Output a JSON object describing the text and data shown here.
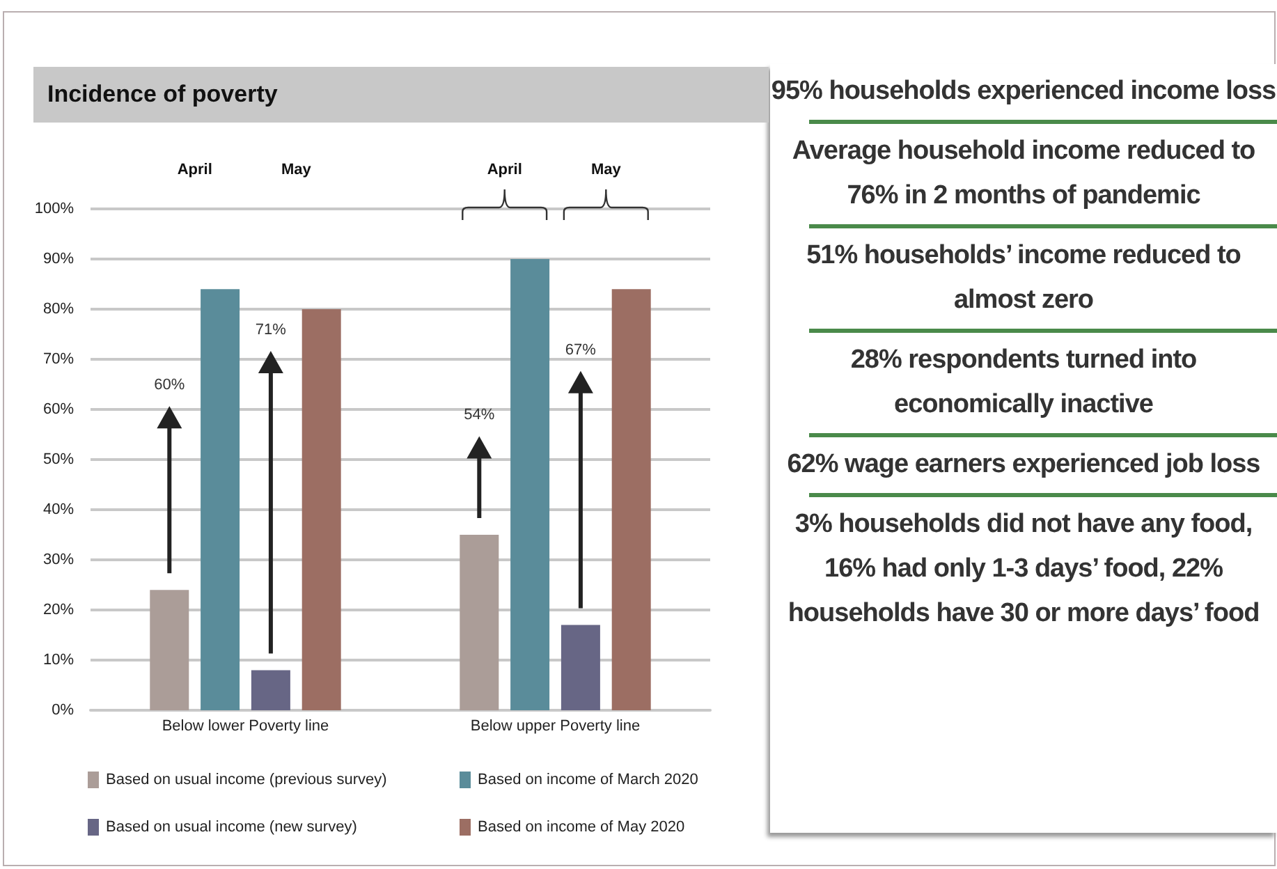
{
  "chart_data": [
    {
      "type": "bar",
      "title": "Incidence of poverty",
      "categories": [
        "Below lower Poverty line",
        "Below upper Poverty line"
      ],
      "series": [
        {
          "name": "Based on usual income (previous survey)",
          "color": "#ab9d98",
          "values": [
            24,
            35
          ]
        },
        {
          "name": "Based on income of March 2020",
          "color": "#5a8c9a",
          "values": [
            84,
            90
          ]
        },
        {
          "name": "Based on usual income (new survey)",
          "color": "#676685",
          "values": [
            8,
            17
          ]
        },
        {
          "name": "Based on income of May 2020",
          "color": "#9c6e63",
          "values": [
            80,
            84
          ]
        }
      ],
      "ylim": [
        0,
        100
      ],
      "yticks": [
        {
          "value": 0,
          "label": "0%"
        },
        {
          "value": 10,
          "label": "10%"
        },
        {
          "value": 20,
          "label": "20%"
        },
        {
          "value": 30,
          "label": "30%"
        },
        {
          "value": 40,
          "label": "40%"
        },
        {
          "value": 50,
          "label": "50%"
        },
        {
          "value": 60,
          "label": "60%"
        },
        {
          "value": 70,
          "label": "70%"
        },
        {
          "value": 80,
          "label": "80%"
        },
        {
          "value": 90,
          "label": "90%"
        },
        {
          "value": 100,
          "label": "100%"
        }
      ],
      "grid": "y",
      "legend": "bottom",
      "annotations": [
        "April",
        "May",
        "April",
        "May",
        "60%",
        "71%",
        "54%",
        "67%"
      ]
    },
    {
      "type": "other",
      "annotations": [
        "95% households experienced income loss",
        "Average household income reduced to 76% in 2 months of pandemic",
        "51% households’ income reduced to almost zero",
        "28% respondents turned into economically inactive",
        "62% wage earners experienced job loss",
        "3% households did not have any food, 16% had only 1-3 days’ food, 22% households have 30 or more days’ food"
      ]
    }
  ]
}
